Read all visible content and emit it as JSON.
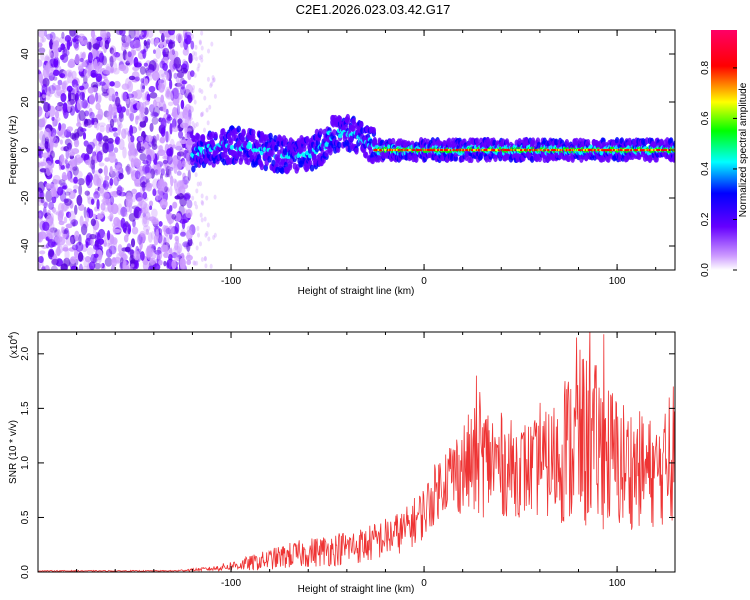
{
  "title": "C2E1.2026.023.03.42.G17",
  "chart_data": [
    {
      "type": "heatmap",
      "name": "spectrogram",
      "xlabel": "Height of straight line (km)",
      "ylabel": "Frequency (Hz)",
      "xlim": [
        -200,
        130
      ],
      "ylim": [
        -50,
        50
      ],
      "xticks": [
        -100,
        0,
        100
      ],
      "yticks": [
        -40,
        -20,
        0,
        20,
        40
      ],
      "colorbar": {
        "label": "Normalized spectral amplitude",
        "range": [
          0.0,
          0.95
        ],
        "ticks": [
          0.0,
          0.2,
          0.4,
          0.6,
          0.8
        ],
        "tick_labels": [
          "0.0",
          "0.2",
          "0.4",
          "0.6",
          "0.8"
        ],
        "colormap": [
          "#ffffff",
          "#cc99ff",
          "#6600ff",
          "#0000ff",
          "#00ffff",
          "#00ff00",
          "#ffff00",
          "#ff0000",
          "#ff0066"
        ]
      },
      "features": {
        "noise_region_x": [
          -200,
          -120
        ],
        "signal_trace_freq_hz": 0,
        "signal_band_start_x": -120,
        "signal_strong_start_x": -25,
        "signal_band_halfwidth_hz": 5
      }
    },
    {
      "type": "line",
      "name": "snr",
      "xlabel": "Height of straight line (km)",
      "ylabel": "SNR (10 * v/v)",
      "multiplier_label": "(x10",
      "multiplier_exp": "4",
      "xlim": [
        -200,
        130
      ],
      "ylim": [
        0,
        2.2
      ],
      "xticks": [
        -100,
        0,
        100
      ],
      "yticks": [
        0.0,
        0.5,
        1.0,
        1.5,
        2.0
      ],
      "ytick_labels": [
        "0.0",
        "0.5",
        "1.0",
        "1.5",
        "2.0"
      ],
      "series_color": "#ee3333",
      "envelope": {
        "x": [
          -200,
          -130,
          -110,
          -90,
          -70,
          -50,
          -30,
          -10,
          0,
          10,
          25,
          30,
          45,
          60,
          70,
          80,
          90,
          100,
          110,
          120,
          130
        ],
        "mean": [
          0.01,
          0.01,
          0.03,
          0.08,
          0.15,
          0.2,
          0.25,
          0.38,
          0.55,
          0.85,
          1.0,
          1.05,
          0.95,
          0.95,
          1.05,
          1.2,
          1.15,
          1.0,
          0.95,
          0.9,
          1.0
        ],
        "spread": [
          0.005,
          0.005,
          0.02,
          0.07,
          0.12,
          0.15,
          0.17,
          0.2,
          0.25,
          0.3,
          0.5,
          0.55,
          0.45,
          0.45,
          0.6,
          0.85,
          0.75,
          0.65,
          0.55,
          0.5,
          0.55
        ]
      },
      "peaks": [
        {
          "x": 27,
          "y": 1.8
        },
        {
          "x": 29,
          "y": 1.65
        },
        {
          "x": 60,
          "y": 1.55
        },
        {
          "x": 73,
          "y": 1.75
        },
        {
          "x": 79,
          "y": 2.15
        },
        {
          "x": 82,
          "y": 1.95
        },
        {
          "x": 86,
          "y": 2.25
        },
        {
          "x": 93,
          "y": 2.18
        },
        {
          "x": 127,
          "y": 1.6
        },
        {
          "x": 129,
          "y": 1.7
        }
      ]
    }
  ]
}
